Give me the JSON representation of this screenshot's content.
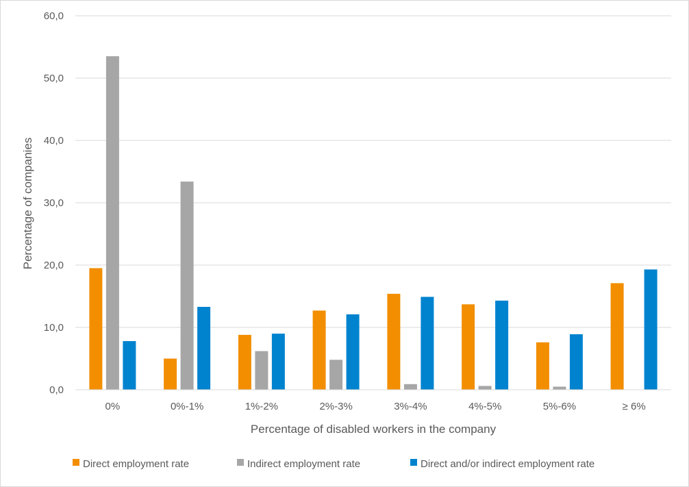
{
  "chart_data": {
    "type": "bar",
    "title": "",
    "xlabel": "Percentage of disabled workers in the company",
    "ylabel": "Percentage of companies",
    "ylim": [
      0,
      60
    ],
    "yticks": [
      "0,0",
      "10,0",
      "20,0",
      "30,0",
      "40,0",
      "50,0",
      "60,0"
    ],
    "categories": [
      "0%",
      "0%-1%",
      "1%-2%",
      "2%-3%",
      "3%-4%",
      "4%-5%",
      "5%-6%",
      "≥ 6%"
    ],
    "series": [
      {
        "name": "Direct employment rate",
        "color": "#f28e00",
        "values": [
          19.5,
          5.0,
          8.8,
          12.7,
          15.4,
          13.7,
          7.6,
          17.1
        ]
      },
      {
        "name": "Indirect employment rate",
        "color": "#a6a6a6",
        "values": [
          53.5,
          33.4,
          6.2,
          4.8,
          0.9,
          0.6,
          0.5,
          0.0
        ]
      },
      {
        "name": "Direct and/or indirect employment rate",
        "color": "#0083cf",
        "values": [
          7.8,
          13.3,
          9.0,
          12.1,
          14.9,
          14.3,
          8.9,
          19.3
        ]
      }
    ],
    "grid": true,
    "legend": "bottom"
  }
}
